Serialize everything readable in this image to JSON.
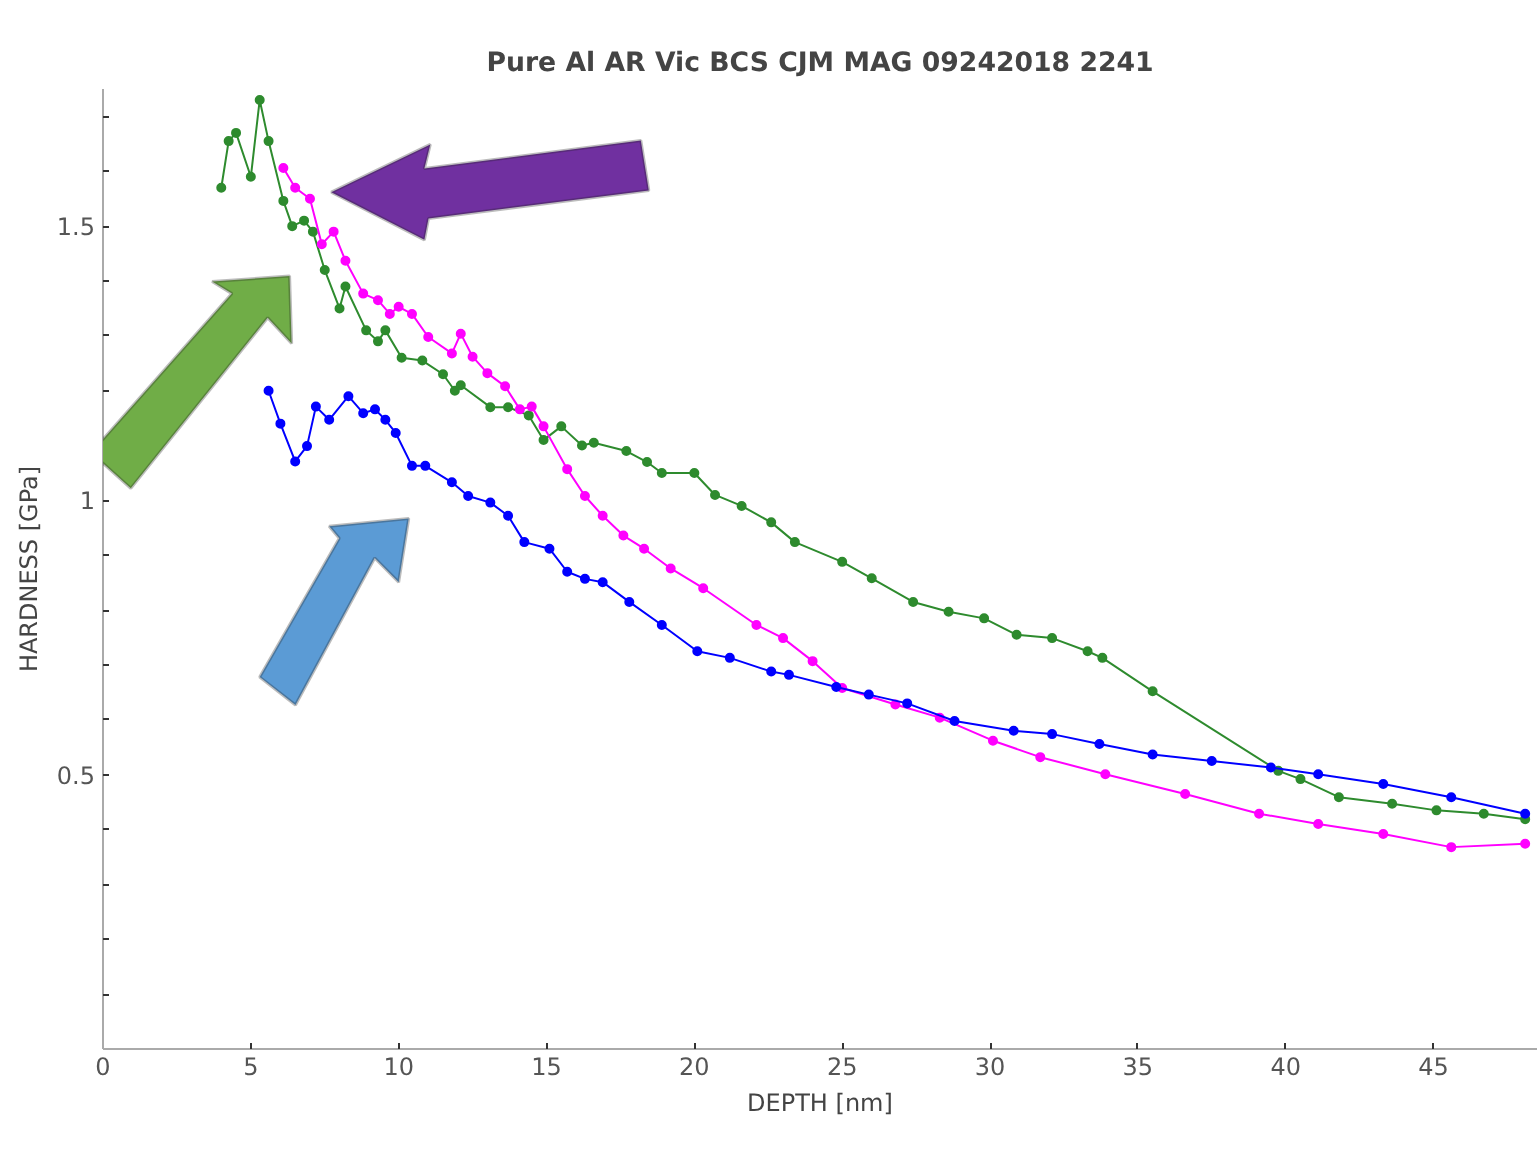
{
  "chart_data": {
    "type": "line",
    "title": "Pure Al AR Vic BCS CJM MAG 09242018 2241",
    "xlabel": "DEPTH [nm]",
    "ylabel": "HARDNESS [GPa]",
    "xlim": [
      0,
      48.5
    ],
    "ylim": [
      0,
      1.75
    ],
    "xticks": [
      0,
      5,
      10,
      15,
      20,
      25,
      30,
      35,
      40,
      45
    ],
    "yticks": [
      {
        "value": 0.1,
        "label": null
      },
      {
        "value": 0.2,
        "label": null
      },
      {
        "value": 0.3,
        "label": null
      },
      {
        "value": 0.4,
        "label": null
      },
      0.5,
      {
        "value": 0.6,
        "label": null
      },
      {
        "value": 0.7,
        "label": null
      },
      {
        "value": 0.8,
        "label": null
      },
      {
        "value": 0.9,
        "label": null
      },
      1,
      {
        "value": 1.1,
        "label": null
      },
      {
        "value": 1.2,
        "label": null
      },
      {
        "value": 1.3,
        "label": null
      },
      {
        "value": 1.4,
        "label": null
      },
      1.5,
      {
        "value": 1.6,
        "label": null
      },
      {
        "value": 1.7,
        "label": null
      }
    ],
    "grid": false,
    "marker": "circle",
    "line_style": "solid",
    "series": [
      {
        "color": "#2e8b2e",
        "x": [
          4.0,
          4.25,
          4.5,
          5.0,
          5.3,
          5.6,
          6.1,
          6.4,
          6.8,
          7.1,
          7.5,
          8.0,
          8.2,
          8.9,
          9.3,
          9.55,
          10.1,
          10.8,
          11.5,
          11.9,
          12.1,
          13.1,
          13.7,
          14.4,
          14.9,
          15.5,
          16.2,
          16.6,
          17.7,
          18.4,
          18.9,
          20.0,
          20.7,
          21.6,
          22.6,
          23.4,
          25.0,
          26.0,
          27.4,
          28.6,
          29.8,
          30.9,
          32.1,
          33.3,
          33.8,
          35.5,
          39.75,
          40.5,
          41.8,
          43.6,
          45.1,
          46.7,
          48.1
        ],
        "values": [
          1.57,
          1.655,
          1.67,
          1.59,
          1.73,
          1.655,
          1.546,
          1.5,
          1.51,
          1.49,
          1.42,
          1.35,
          1.39,
          1.31,
          1.29,
          1.31,
          1.26,
          1.255,
          1.23,
          1.2,
          1.21,
          1.17,
          1.17,
          1.155,
          1.11,
          1.135,
          1.1,
          1.105,
          1.09,
          1.07,
          1.05,
          1.05,
          1.01,
          0.99,
          0.96,
          0.924,
          0.888,
          0.858,
          0.815,
          0.797,
          0.785,
          0.755,
          0.749,
          0.725,
          0.713,
          0.652,
          0.507,
          0.492,
          0.459,
          0.447,
          0.435,
          0.429,
          0.419
        ]
      },
      {
        "color": "#ff00ff",
        "x": [
          6.1,
          6.5,
          7.0,
          7.4,
          7.8,
          8.2,
          8.8,
          9.3,
          9.7,
          10.0,
          10.45,
          11.0,
          11.8,
          12.1,
          12.5,
          13.0,
          13.6,
          14.1,
          14.5,
          14.9,
          15.7,
          16.3,
          16.9,
          17.6,
          18.3,
          19.2,
          20.3,
          22.1,
          23.0,
          24.0,
          25.0,
          26.8,
          28.3,
          30.1,
          31.7,
          33.9,
          36.6,
          39.1,
          41.1,
          43.3,
          45.6,
          48.1
        ],
        "values": [
          1.606,
          1.57,
          1.55,
          1.467,
          1.49,
          1.437,
          1.377,
          1.365,
          1.34,
          1.353,
          1.34,
          1.298,
          1.268,
          1.304,
          1.262,
          1.232,
          1.208,
          1.166,
          1.171,
          1.135,
          1.057,
          1.008,
          0.972,
          0.936,
          0.912,
          0.876,
          0.84,
          0.773,
          0.749,
          0.707,
          0.658,
          0.628,
          0.604,
          0.562,
          0.532,
          0.501,
          0.465,
          0.429,
          0.41,
          0.392,
          0.368,
          0.374
        ]
      },
      {
        "color": "#0000ff",
        "x": [
          5.6,
          6.0,
          6.5,
          6.9,
          7.2,
          7.65,
          8.3,
          8.8,
          9.2,
          9.55,
          9.9,
          10.45,
          10.9,
          11.8,
          12.35,
          13.1,
          13.7,
          14.25,
          15.1,
          15.7,
          16.3,
          16.9,
          17.8,
          18.9,
          20.1,
          21.2,
          22.6,
          23.2,
          24.8,
          25.9,
          27.2,
          28.8,
          30.8,
          32.1,
          33.7,
          35.5,
          37.5,
          39.5,
          41.1,
          43.3,
          45.6,
          48.1
        ],
        "values": [
          1.2,
          1.14,
          1.071,
          1.099,
          1.171,
          1.147,
          1.19,
          1.159,
          1.166,
          1.147,
          1.123,
          1.063,
          1.063,
          1.033,
          1.008,
          0.996,
          0.972,
          0.924,
          0.912,
          0.87,
          0.857,
          0.851,
          0.815,
          0.773,
          0.725,
          0.713,
          0.688,
          0.682,
          0.66,
          0.646,
          0.63,
          0.598,
          0.58,
          0.574,
          0.556,
          0.537,
          0.525,
          0.513,
          0.501,
          0.483,
          0.459,
          0.429
        ]
      }
    ]
  }
}
